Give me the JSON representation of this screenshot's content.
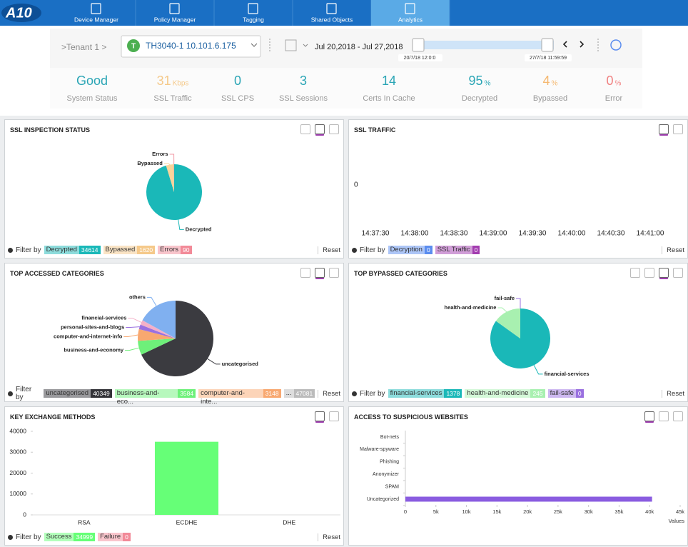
{
  "nav": {
    "logo": "A10",
    "tabs": [
      "Device Manager",
      "Policy Manager",
      "Tagging",
      "Shared Objects",
      "Analytics"
    ],
    "active": 4
  },
  "toolbar": {
    "tenant": ">Tenant 1 >",
    "device_badge": "T",
    "device": "TH3040-1 10.101.6.175",
    "date_range": "Jul 20,2018 - Jul 27,2018",
    "slider_start": "20/7/18 12:0:0",
    "slider_end": "27/7/18 11:59:59"
  },
  "stats": [
    {
      "value": "Good",
      "label": "System Status",
      "color": "#2aa5b5"
    },
    {
      "value": "31",
      "unit": "Kbps",
      "label": "SSL Traffic",
      "color": "#f5c98a"
    },
    {
      "value": "0",
      "label": "SSL CPS",
      "color": "#2aa5b5"
    },
    {
      "value": "3",
      "label": "SSL Sessions",
      "color": "#2aa5b5"
    },
    {
      "value": "14",
      "label": "Certs In Cache",
      "color": "#2aa5b5"
    },
    {
      "value": "95",
      "unit": "%",
      "label": "Decrypted",
      "color": "#2aa5b5"
    },
    {
      "value": "4",
      "unit": "%",
      "label": "Bypassed",
      "color": "#f5b870"
    },
    {
      "value": "0",
      "unit": "%",
      "label": "Error",
      "color": "#f08080"
    }
  ],
  "panels": [
    {
      "title": "SSL INSPECTION STATUS",
      "type": "pie",
      "slices": [
        {
          "name": "Decrypted",
          "value": 34614,
          "color": "#1ab8b8"
        },
        {
          "name": "Bypassed",
          "value": 1620,
          "color": "#f8d49a"
        },
        {
          "name": "Errors",
          "value": 90,
          "color": "#f29aa6"
        }
      ],
      "filter_label": "Filter by",
      "filters": [
        {
          "name": "Decrypted",
          "count": 34614,
          "color": "#1ab8b8"
        },
        {
          "name": "Bypassed",
          "count": 1620,
          "color": "#f5c98a"
        },
        {
          "name": "Errors",
          "count": 90,
          "color": "#f28a98"
        }
      ],
      "reset": "Reset"
    },
    {
      "title": "SSL TRAFFIC",
      "type": "line",
      "categories": [
        "14:37:30",
        "14:38:00",
        "14:38:30",
        "14:39:00",
        "14:39:30",
        "14:40:00",
        "14:40:30",
        "14:41:00"
      ],
      "yticks": [
        0
      ],
      "filter_label": "Filter by",
      "filters": [
        {
          "name": "Decryption",
          "count": 0,
          "color": "#5b8def"
        },
        {
          "name": "SSL Traffic",
          "count": 0,
          "color": "#a33cb0"
        }
      ],
      "reset": "Reset"
    },
    {
      "title": "TOP ACCESSED CATEGORIES",
      "type": "pie",
      "slices": [
        {
          "name": "uncategorised",
          "value": 68,
          "color": "#3b3b40"
        },
        {
          "name": "business-and-economy",
          "value": 6,
          "color": "#6ef07a"
        },
        {
          "name": "computer-and-internet-info",
          "value": 5,
          "color": "#f8a870"
        },
        {
          "name": "personal-sites-and-blogs",
          "value": 2,
          "color": "#9a70e0"
        },
        {
          "name": "financial-services",
          "value": 2,
          "color": "#f4b0c8"
        },
        {
          "name": "others",
          "value": 17,
          "color": "#80b0f0"
        }
      ],
      "filter_label": "Filter by",
      "filters": [
        {
          "name": "uncategorised",
          "count": 40349,
          "color": "#333338"
        },
        {
          "name": "business-and-eco...",
          "count": 3584,
          "color": "#6ef07a"
        },
        {
          "name": "computer-and-inte...",
          "count": 3148,
          "color": "#f8a870"
        },
        {
          "name": "...",
          "count": 47081,
          "color": "#bbbbbb"
        }
      ],
      "reset": "Reset"
    },
    {
      "title": "TOP BYPASSED CATEGORIES",
      "type": "pie",
      "slices": [
        {
          "name": "financial-services",
          "value": 1378,
          "color": "#1ab8b8"
        },
        {
          "name": "health-and-medicine",
          "value": 245,
          "color": "#a8f0b0"
        },
        {
          "name": "fail-safe",
          "value": 0,
          "color": "#9a70e0"
        }
      ],
      "filter_label": "Filter by",
      "filters": [
        {
          "name": "financial-services",
          "count": 1378,
          "color": "#1ab8b8"
        },
        {
          "name": "health-and-medicine",
          "count": 245,
          "color": "#a8f0b0"
        },
        {
          "name": "fail-safe",
          "count": 0,
          "color": "#9a70e0"
        }
      ],
      "reset": "Reset"
    },
    {
      "title": "KEY EXCHANGE METHODS",
      "type": "bar",
      "categories": [
        "RSA",
        "ECDHE",
        "DHE"
      ],
      "values": [
        0,
        34999,
        0
      ],
      "color": "#66ff77",
      "ylim": [
        0,
        40000
      ],
      "yticks": [
        0,
        10000,
        20000,
        30000,
        40000
      ],
      "filter_label": "Filter by",
      "filters": [
        {
          "name": "Success",
          "count": 34999,
          "color": "#66ff77"
        },
        {
          "name": "Failure",
          "count": 0,
          "color": "#f28a98"
        }
      ],
      "reset": "Reset"
    },
    {
      "title": "ACCESS TO SUSPICIOUS WEBSITES",
      "type": "hbar",
      "categories": [
        "Bot-nets",
        "Malware-spyware",
        "Phishing",
        "Anonymizer",
        "SPAM",
        "Uncategorized"
      ],
      "values": [
        0,
        0,
        0,
        0,
        0,
        40400
      ],
      "color": "#8a5ce0",
      "xlim": [
        0,
        45000
      ],
      "xticks": [
        0,
        {
          "value": 5000,
          "label": "5k"
        },
        {
          "value": 10000,
          "label": "10k"
        },
        {
          "value": 15000,
          "label": "15k"
        },
        {
          "value": 20000,
          "label": "20k"
        },
        {
          "value": 25000,
          "label": "25k"
        },
        {
          "value": 30000,
          "label": "30k"
        },
        {
          "value": 35000,
          "label": "35k"
        },
        {
          "value": 40000,
          "label": "40k"
        },
        {
          "value": 45000,
          "label": "45k"
        }
      ],
      "xlabel": "Values"
    }
  ]
}
